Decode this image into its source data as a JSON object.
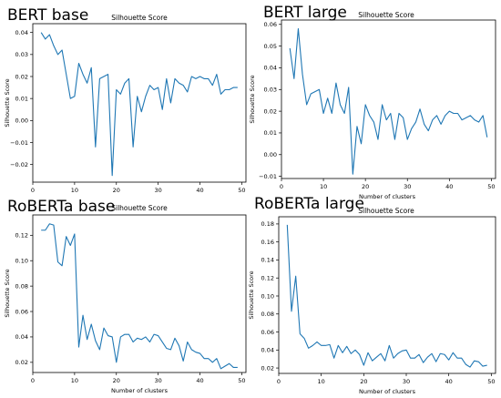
{
  "chart_data": [
    {
      "type": "line",
      "panel_title": "BERT base",
      "title": "Silhouette Score",
      "xlabel": "",
      "ylabel": "Silhouette Score",
      "xlim": [
        0,
        51
      ],
      "ylim": [
        -0.028,
        0.044
      ],
      "xticks": [
        0,
        10,
        20,
        30,
        40,
        50
      ],
      "yticks": [
        -0.02,
        -0.01,
        0.0,
        0.01,
        0.02,
        0.03,
        0.04
      ],
      "ytick_labels": [
        "−0.02",
        "−0.01",
        "0.00",
        "0.01",
        "0.02",
        "0.03",
        "0.04"
      ],
      "color": "#1f77b4",
      "grid": false,
      "series": [
        {
          "x": [
            2,
            3,
            4,
            5,
            6,
            7,
            8,
            9,
            10,
            11,
            12,
            13,
            14,
            15,
            16,
            17,
            18,
            19,
            20,
            21,
            22,
            23,
            24,
            25,
            26,
            27,
            28,
            29,
            30,
            31,
            32,
            33,
            34,
            35,
            36,
            37,
            38,
            39,
            40,
            41,
            42,
            43,
            44,
            45,
            46,
            47,
            48,
            49
          ],
          "values": [
            0.04,
            0.037,
            0.039,
            0.034,
            0.03,
            0.032,
            0.021,
            0.01,
            0.011,
            0.026,
            0.021,
            0.017,
            0.024,
            -0.012,
            0.019,
            0.02,
            0.021,
            -0.025,
            0.014,
            0.012,
            0.017,
            0.019,
            -0.012,
            0.011,
            0.004,
            0.011,
            0.016,
            0.014,
            0.015,
            0.005,
            0.019,
            0.008,
            0.019,
            0.017,
            0.016,
            0.013,
            0.02,
            0.019,
            0.02,
            0.019,
            0.019,
            0.016,
            0.021,
            0.012,
            0.014,
            0.014,
            0.015,
            0.015
          ]
        }
      ]
    },
    {
      "type": "line",
      "panel_title": "BERT large",
      "title": "Silhouette Score",
      "xlabel": "Number of clusters",
      "ylabel": "Silhouette Score",
      "xlim": [
        0,
        51
      ],
      "ylim": [
        -0.011,
        0.062
      ],
      "xticks": [
        0,
        10,
        20,
        30,
        40,
        50
      ],
      "yticks": [
        -0.01,
        0.0,
        0.01,
        0.02,
        0.03,
        0.04,
        0.05,
        0.06
      ],
      "ytick_labels": [
        "−0.01",
        "0.00",
        "0.01",
        "0.02",
        "0.03",
        "0.04",
        "0.05",
        "0.06"
      ],
      "color": "#1f77b4",
      "grid": false,
      "series": [
        {
          "x": [
            2,
            3,
            4,
            5,
            6,
            7,
            8,
            9,
            10,
            11,
            12,
            13,
            14,
            15,
            16,
            17,
            18,
            19,
            20,
            21,
            22,
            23,
            24,
            25,
            26,
            27,
            28,
            29,
            30,
            31,
            32,
            33,
            34,
            35,
            36,
            37,
            38,
            39,
            40,
            41,
            42,
            43,
            44,
            45,
            46,
            47,
            48,
            49
          ],
          "values": [
            0.049,
            0.035,
            0.058,
            0.037,
            0.023,
            0.028,
            0.029,
            0.03,
            0.019,
            0.026,
            0.019,
            0.033,
            0.023,
            0.019,
            0.031,
            -0.009,
            0.013,
            0.005,
            0.023,
            0.018,
            0.015,
            0.007,
            0.023,
            0.016,
            0.019,
            0.007,
            0.019,
            0.017,
            0.007,
            0.012,
            0.015,
            0.021,
            0.014,
            0.011,
            0.016,
            0.018,
            0.014,
            0.018,
            0.02,
            0.019,
            0.019,
            0.016,
            0.017,
            0.018,
            0.016,
            0.015,
            0.018,
            0.008
          ]
        }
      ]
    },
    {
      "type": "line",
      "panel_title": "RoBERTa base",
      "title": "Silhouette Score",
      "xlabel": "Number of clusters",
      "ylabel": "Silhouette Score",
      "xlim": [
        0,
        51
      ],
      "ylim": [
        0.012,
        0.136
      ],
      "xticks": [
        0,
        10,
        20,
        30,
        40,
        50
      ],
      "yticks": [
        0.02,
        0.04,
        0.06,
        0.08,
        0.1,
        0.12
      ],
      "ytick_labels": [
        "0.02",
        "0.04",
        "0.06",
        "0.08",
        "0.10",
        "0.12"
      ],
      "color": "#1f77b4",
      "grid": false,
      "series": [
        {
          "x": [
            2,
            3,
            4,
            5,
            6,
            7,
            8,
            9,
            10,
            11,
            12,
            13,
            14,
            15,
            16,
            17,
            18,
            19,
            20,
            21,
            22,
            23,
            24,
            25,
            26,
            27,
            28,
            29,
            30,
            31,
            32,
            33,
            34,
            35,
            36,
            37,
            38,
            39,
            40,
            41,
            42,
            43,
            44,
            45,
            46,
            47,
            48,
            49
          ],
          "values": [
            0.124,
            0.124,
            0.129,
            0.128,
            0.099,
            0.096,
            0.119,
            0.112,
            0.121,
            0.032,
            0.057,
            0.038,
            0.05,
            0.037,
            0.03,
            0.047,
            0.041,
            0.04,
            0.02,
            0.04,
            0.042,
            0.042,
            0.036,
            0.039,
            0.038,
            0.04,
            0.036,
            0.042,
            0.041,
            0.036,
            0.031,
            0.03,
            0.039,
            0.033,
            0.021,
            0.036,
            0.03,
            0.028,
            0.027,
            0.023,
            0.023,
            0.02,
            0.023,
            0.015,
            0.017,
            0.019,
            0.016,
            0.016
          ]
        }
      ]
    },
    {
      "type": "line",
      "panel_title": "RoBERTa large",
      "title": "Silhouette Score",
      "xlabel": "Number of clusters",
      "ylabel": "Silhouette Score",
      "xlim": [
        0,
        51
      ],
      "ylim": [
        0.014,
        0.188
      ],
      "xticks": [
        0,
        10,
        20,
        30,
        40,
        50
      ],
      "yticks": [
        0.02,
        0.04,
        0.06,
        0.08,
        0.1,
        0.12,
        0.14,
        0.16,
        0.18
      ],
      "ytick_labels": [
        "0.02",
        "0.04",
        "0.06",
        "0.08",
        "0.10",
        "0.12",
        "0.14",
        "0.16",
        "0.18"
      ],
      "color": "#1f77b4",
      "grid": false,
      "series": [
        {
          "x": [
            2,
            3,
            4,
            5,
            6,
            7,
            8,
            9,
            10,
            11,
            12,
            13,
            14,
            15,
            16,
            17,
            18,
            19,
            20,
            21,
            22,
            23,
            24,
            25,
            26,
            27,
            28,
            29,
            30,
            31,
            32,
            33,
            34,
            35,
            36,
            37,
            38,
            39,
            40,
            41,
            42,
            43,
            44,
            45,
            46,
            47,
            48,
            49
          ],
          "values": [
            0.179,
            0.083,
            0.122,
            0.058,
            0.053,
            0.042,
            0.045,
            0.049,
            0.045,
            0.045,
            0.046,
            0.031,
            0.045,
            0.037,
            0.044,
            0.036,
            0.04,
            0.035,
            0.023,
            0.037,
            0.028,
            0.032,
            0.036,
            0.028,
            0.045,
            0.031,
            0.036,
            0.039,
            0.04,
            0.031,
            0.031,
            0.035,
            0.026,
            0.032,
            0.036,
            0.027,
            0.036,
            0.035,
            0.029,
            0.037,
            0.031,
            0.031,
            0.024,
            0.021,
            0.028,
            0.027,
            0.022,
            0.023
          ]
        }
      ]
    }
  ]
}
